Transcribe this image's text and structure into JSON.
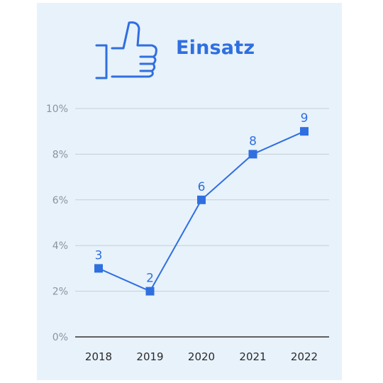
{
  "header": {
    "title": "Einsatz",
    "icon": "thumbs-up-icon"
  },
  "colors": {
    "accent": "#2f6fe0",
    "panel": "#e8f2fb",
    "grid": "#c8cdd3",
    "axis": "#333333"
  },
  "chart_data": {
    "type": "line",
    "title": "Einsatz",
    "categories": [
      "2018",
      "2019",
      "2020",
      "2021",
      "2022"
    ],
    "series": [
      {
        "values": [
          3,
          2,
          6,
          8,
          9
        ]
      }
    ],
    "data_labels": [
      "3",
      "2",
      "6",
      "8",
      "9"
    ],
    "yticks": [
      0,
      2,
      4,
      6,
      8,
      10
    ],
    "ytick_labels": [
      "0%",
      "2%",
      "4%",
      "6%",
      "8%",
      "10%"
    ],
    "ylim": [
      0,
      10
    ],
    "grid": true,
    "marker": "square"
  }
}
